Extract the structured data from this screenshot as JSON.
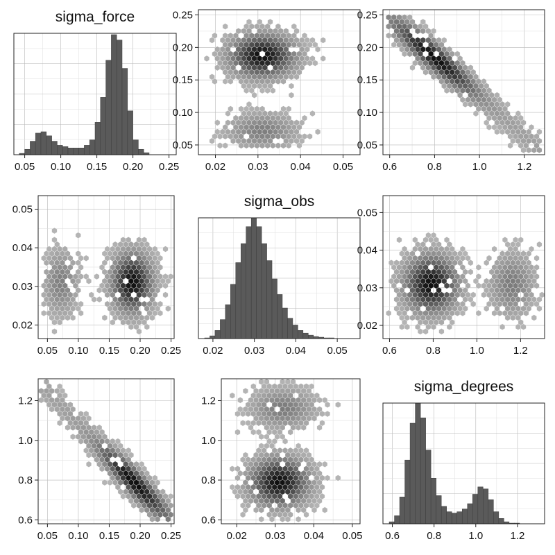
{
  "chart_data": {
    "type": "pairs-plot",
    "variables": [
      "sigma_force",
      "sigma_obs",
      "sigma_degrees"
    ],
    "colors": {
      "bar": "#5a5a5a",
      "bar_edge": "#3c3c3c",
      "hex_light": "#b4b4b4",
      "hex_dark": "#111111"
    },
    "panels": [
      {
        "id": "p00",
        "row": 0,
        "col": 0,
        "kind": "histogram",
        "title": "sigma_force",
        "xlim": [
          0.035,
          0.26
        ],
        "xticks": [
          0.05,
          0.1,
          0.15,
          0.2,
          0.25
        ],
        "xtick_labels": [
          "0.05",
          "0.10",
          "0.15",
          "0.20",
          "0.25"
        ],
        "bins_start": 0.0425,
        "bin_width": 0.0075,
        "values": [
          2,
          8,
          20,
          32,
          34,
          28,
          20,
          14,
          12,
          10,
          10,
          10,
          14,
          22,
          48,
          85,
          140,
          178,
          170,
          128,
          65,
          22,
          8,
          3
        ],
        "ymax": 180
      },
      {
        "id": "p01",
        "row": 0,
        "col": 1,
        "kind": "hexbin",
        "xlim": [
          0.016,
          0.054
        ],
        "ylim": [
          0.035,
          0.258
        ],
        "xticks": [
          0.02,
          0.03,
          0.04,
          0.05
        ],
        "xtick_labels": [
          "0.02",
          "0.03",
          "0.04",
          "0.05"
        ],
        "yticks": [
          0.05,
          0.1,
          0.15,
          0.2,
          0.25
        ],
        "ytick_labels": [
          "0.05",
          "0.10",
          "0.15",
          "0.20",
          "0.25"
        ],
        "clusters": [
          {
            "cx": 0.031,
            "cy": 0.187,
            "sx": 0.0044,
            "sy": 0.019,
            "w": 1.0
          },
          {
            "cx": 0.031,
            "cy": 0.072,
            "sx": 0.0048,
            "sy": 0.016,
            "w": 0.28
          }
        ],
        "x_extent": [
          0.018,
          0.052
        ],
        "y_extent": [
          0.045,
          0.25
        ]
      },
      {
        "id": "p02",
        "row": 0,
        "col": 2,
        "kind": "hexbin",
        "xlim": [
          0.57,
          1.29
        ],
        "ylim": [
          0.035,
          0.258
        ],
        "xticks": [
          0.6,
          0.8,
          1.0,
          1.2
        ],
        "xtick_labels": [
          "0.6",
          "0.8",
          "1.0",
          "1.2"
        ],
        "yticks": [
          0.05,
          0.1,
          0.15,
          0.2,
          0.25
        ],
        "ytick_labels": [
          "0.05",
          "0.10",
          "0.15",
          "0.20",
          "0.25"
        ],
        "line": {
          "x0": 0.6,
          "y0": 0.245,
          "x1": 1.26,
          "y1": 0.045,
          "spread": 0.01
        },
        "density_peak_x": 0.8,
        "x_extent": [
          0.6,
          1.27
        ],
        "y_extent": [
          0.042,
          0.248
        ]
      },
      {
        "id": "p10",
        "row": 1,
        "col": 0,
        "kind": "hexbin",
        "xlim": [
          0.035,
          0.255
        ],
        "ylim": [
          0.0165,
          0.0535
        ],
        "xticks": [
          0.05,
          0.1,
          0.15,
          0.2,
          0.25
        ],
        "xtick_labels": [
          "0.05",
          "0.10",
          "0.15",
          "0.20",
          "0.25"
        ],
        "yticks": [
          0.02,
          0.03,
          0.04,
          0.05
        ],
        "ytick_labels": [
          "0.02",
          "0.03",
          "0.04",
          "0.05"
        ],
        "clusters": [
          {
            "cx": 0.187,
            "cy": 0.031,
            "sx": 0.019,
            "sy": 0.0044,
            "w": 1.0
          },
          {
            "cx": 0.072,
            "cy": 0.031,
            "sx": 0.016,
            "sy": 0.0048,
            "w": 0.28
          }
        ],
        "x_extent": [
          0.045,
          0.25
        ],
        "y_extent": [
          0.018,
          0.052
        ]
      },
      {
        "id": "p11",
        "row": 1,
        "col": 1,
        "kind": "histogram",
        "title": "sigma_obs",
        "xlim": [
          0.0165,
          0.0555
        ],
        "xticks": [
          0.02,
          0.03,
          0.04,
          0.05
        ],
        "xtick_labels": [
          "0.02",
          "0.03",
          "0.04",
          "0.05"
        ],
        "bins_start": 0.018,
        "bin_width": 0.00125,
        "values": [
          1,
          4,
          12,
          28,
          50,
          80,
          112,
          140,
          165,
          178,
          165,
          140,
          115,
          88,
          65,
          45,
          30,
          20,
          12,
          8,
          5,
          3,
          2,
          1,
          1,
          0
        ],
        "ymax": 178
      },
      {
        "id": "p12",
        "row": 1,
        "col": 2,
        "kind": "hexbin",
        "xlim": [
          0.57,
          1.31
        ],
        "ylim": [
          0.0165,
          0.0545
        ],
        "xticks": [
          0.6,
          0.8,
          1.0,
          1.2
        ],
        "xtick_labels": [
          "0.6",
          "0.8",
          "1.0",
          "1.2"
        ],
        "yticks": [
          0.02,
          0.03,
          0.04,
          0.05
        ],
        "ytick_labels": [
          "0.02",
          "0.03",
          "0.04",
          "0.05"
        ],
        "clusters": [
          {
            "cx": 0.79,
            "cy": 0.031,
            "sx": 0.07,
            "sy": 0.0044,
            "w": 1.0
          },
          {
            "cx": 1.16,
            "cy": 0.031,
            "sx": 0.06,
            "sy": 0.0048,
            "w": 0.3
          }
        ],
        "x_extent": [
          0.6,
          1.3
        ],
        "y_extent": [
          0.018,
          0.053
        ]
      },
      {
        "id": "p20",
        "row": 2,
        "col": 0,
        "kind": "hexbin",
        "xlim": [
          0.035,
          0.255
        ],
        "ylim": [
          0.58,
          1.31
        ],
        "xticks": [
          0.05,
          0.1,
          0.15,
          0.2,
          0.25
        ],
        "xtick_labels": [
          "0.05",
          "0.10",
          "0.15",
          "0.20",
          "0.25"
        ],
        "yticks": [
          0.6,
          0.8,
          1.0,
          1.2
        ],
        "ytick_labels": [
          "0.6",
          "0.8",
          "1.0",
          "1.2"
        ],
        "line": {
          "x0": 0.045,
          "y0": 1.26,
          "x1": 0.245,
          "y1": 0.61,
          "spread": 0.03
        },
        "density_peak_x": 0.19,
        "x_extent": [
          0.042,
          0.248
        ],
        "y_extent": [
          0.6,
          1.29
        ]
      },
      {
        "id": "p21",
        "row": 2,
        "col": 1,
        "kind": "hexbin",
        "xlim": [
          0.016,
          0.052
        ],
        "ylim": [
          0.58,
          1.31
        ],
        "xticks": [
          0.02,
          0.03,
          0.04,
          0.05
        ],
        "xtick_labels": [
          "0.02",
          "0.03",
          "0.04",
          "0.05"
        ],
        "yticks": [
          0.6,
          0.8,
          1.0,
          1.2
        ],
        "ytick_labels": [
          "0.6",
          "0.8",
          "1.0",
          "1.2"
        ],
        "clusters": [
          {
            "cx": 0.031,
            "cy": 0.79,
            "sx": 0.0044,
            "sy": 0.07,
            "w": 1.0
          },
          {
            "cx": 0.032,
            "cy": 1.16,
            "sx": 0.0048,
            "sy": 0.06,
            "w": 0.3
          }
        ],
        "x_extent": [
          0.018,
          0.05
        ],
        "y_extent": [
          0.6,
          1.3
        ]
      },
      {
        "id": "p22",
        "row": 2,
        "col": 2,
        "kind": "histogram",
        "title": "sigma_degrees",
        "xlim": [
          0.555,
          1.33
        ],
        "xticks": [
          0.6,
          0.8,
          1.0,
          1.2
        ],
        "xtick_labels": [
          "0.6",
          "0.8",
          "1.0",
          "1.2"
        ],
        "bins_start": 0.585,
        "bin_width": 0.025,
        "values": [
          3,
          12,
          40,
          95,
          150,
          180,
          158,
          110,
          68,
          42,
          26,
          18,
          16,
          18,
          22,
          30,
          44,
          55,
          52,
          36,
          18,
          8,
          3,
          1,
          1,
          0,
          0,
          0,
          0,
          0
        ],
        "ymax": 180
      }
    ]
  }
}
